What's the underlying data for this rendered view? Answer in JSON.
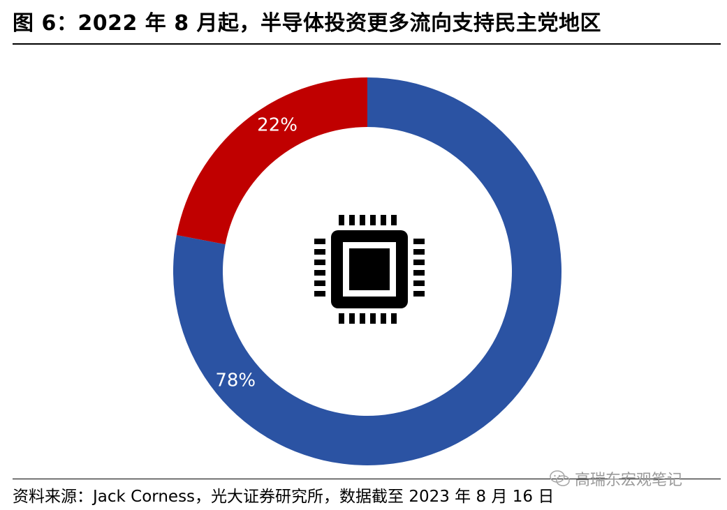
{
  "title": "图 6：2022 年 8 月起，半导体投资更多流向支持民主党地区",
  "source": "资料来源：Jack Corness，光大证券研究所，数据截至 2023 年 8 月 16 日",
  "watermark": "高瑞东宏观笔记",
  "center_icon": "microchip-icon",
  "chart_data": {
    "type": "pie",
    "donut": true,
    "start_angle": "12 o'clock",
    "direction": "clockwise",
    "slices": [
      {
        "label": "78%",
        "value": 78,
        "color": "#2b53a3"
      },
      {
        "label": "22%",
        "value": 22,
        "color": "#c00000"
      }
    ],
    "legend": "none"
  }
}
